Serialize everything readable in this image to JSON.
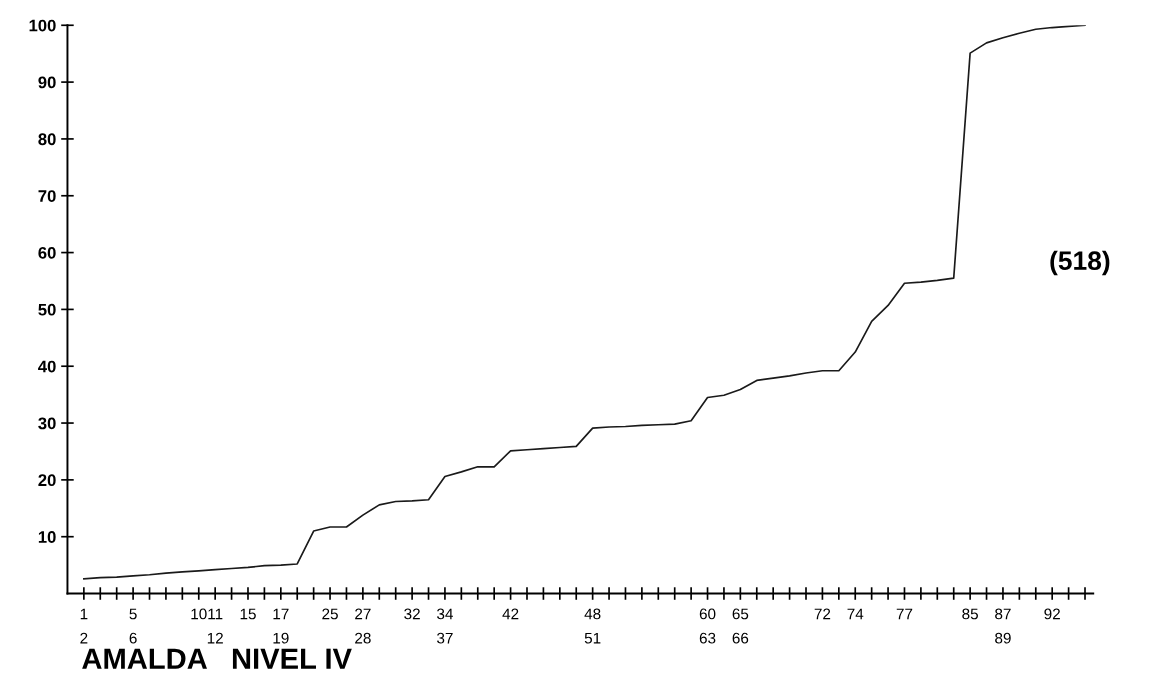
{
  "chart_data": {
    "type": "line",
    "title": "AMALDA   NIVEL IV",
    "annotations": [
      "(518)"
    ],
    "categories": [
      "1\n2",
      null,
      null,
      "5\n6",
      null,
      null,
      null,
      "10",
      "11\n12",
      null,
      "15",
      null,
      "17\n19",
      null,
      null,
      "25",
      null,
      "27\n28",
      null,
      null,
      "32",
      null,
      "34\n37",
      null,
      null,
      null,
      "42",
      null,
      null,
      null,
      null,
      "48\n51",
      null,
      null,
      null,
      null,
      null,
      null,
      "60\n63",
      null,
      "65\n66",
      null,
      null,
      null,
      null,
      "72",
      null,
      "74",
      null,
      null,
      "77",
      null,
      null,
      null,
      "85",
      null,
      "87\n89",
      null,
      null,
      "92",
      null,
      null
    ],
    "series": [
      {
        "color": "#1a1a1a",
        "values": [
          2.6,
          2.8,
          2.9,
          3.1,
          3.3,
          3.6,
          3.8,
          4.0,
          4.2,
          4.4,
          4.6,
          4.9,
          5.0,
          5.2,
          11.0,
          11.7,
          11.7,
          13.8,
          15.6,
          16.2,
          16.3,
          16.5,
          20.6,
          21.4,
          22.3,
          22.3,
          25.1,
          25.3,
          25.5,
          25.7,
          25.9,
          29.1,
          29.3,
          29.4,
          29.6,
          29.7,
          29.8,
          30.4,
          34.5,
          34.9,
          35.9,
          37.5,
          37.9,
          38.3,
          38.8,
          39.2,
          39.2,
          42.5,
          47.9,
          50.7,
          54.6,
          54.8,
          55.1,
          55.5,
          95.1,
          96.9,
          97.8,
          98.6,
          99.3,
          99.6,
          99.8,
          100
        ]
      }
    ],
    "ylim": [
      0,
      100
    ],
    "yticks": [
      10,
      20,
      30,
      40,
      50,
      60,
      70,
      80,
      90,
      100
    ],
    "grid": false,
    "legend": false,
    "marker": "none",
    "line_style": "solid"
  }
}
